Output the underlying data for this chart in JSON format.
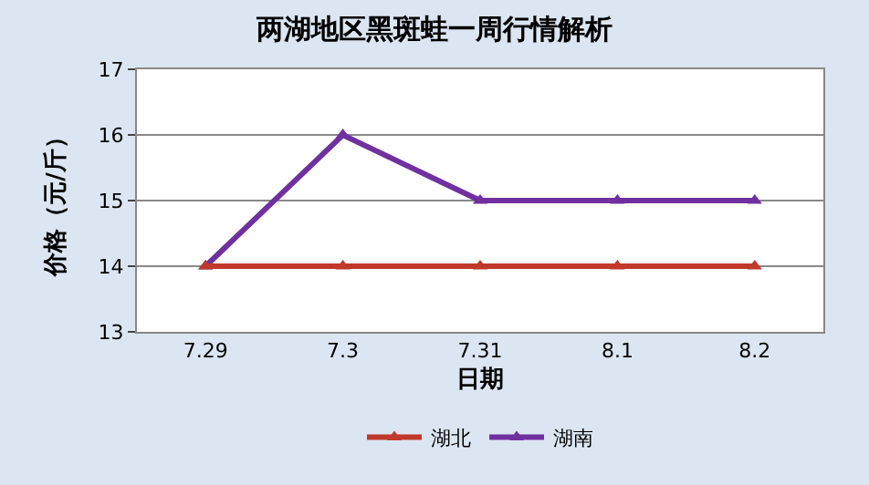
{
  "chart_data": {
    "type": "line",
    "title": "两湖地区黑斑蛙一周行情解析",
    "xlabel": "日期",
    "ylabel": "价格（元/斤）",
    "categories": [
      "7.29",
      "7.3",
      "7.31",
      "8.1",
      "8.2"
    ],
    "series": [
      {
        "name": "湖北",
        "color": "#c0392b",
        "values": [
          14,
          14,
          14,
          14,
          14
        ]
      },
      {
        "name": "湖南",
        "color": "#7030a0",
        "values": [
          14,
          16,
          15,
          15,
          15
        ]
      }
    ],
    "ylim": [
      13,
      17
    ],
    "yticks": [
      13,
      14,
      15,
      16,
      17
    ],
    "grid": "y",
    "legend": "bottom",
    "marker": "triangle",
    "line_style": "solid"
  }
}
